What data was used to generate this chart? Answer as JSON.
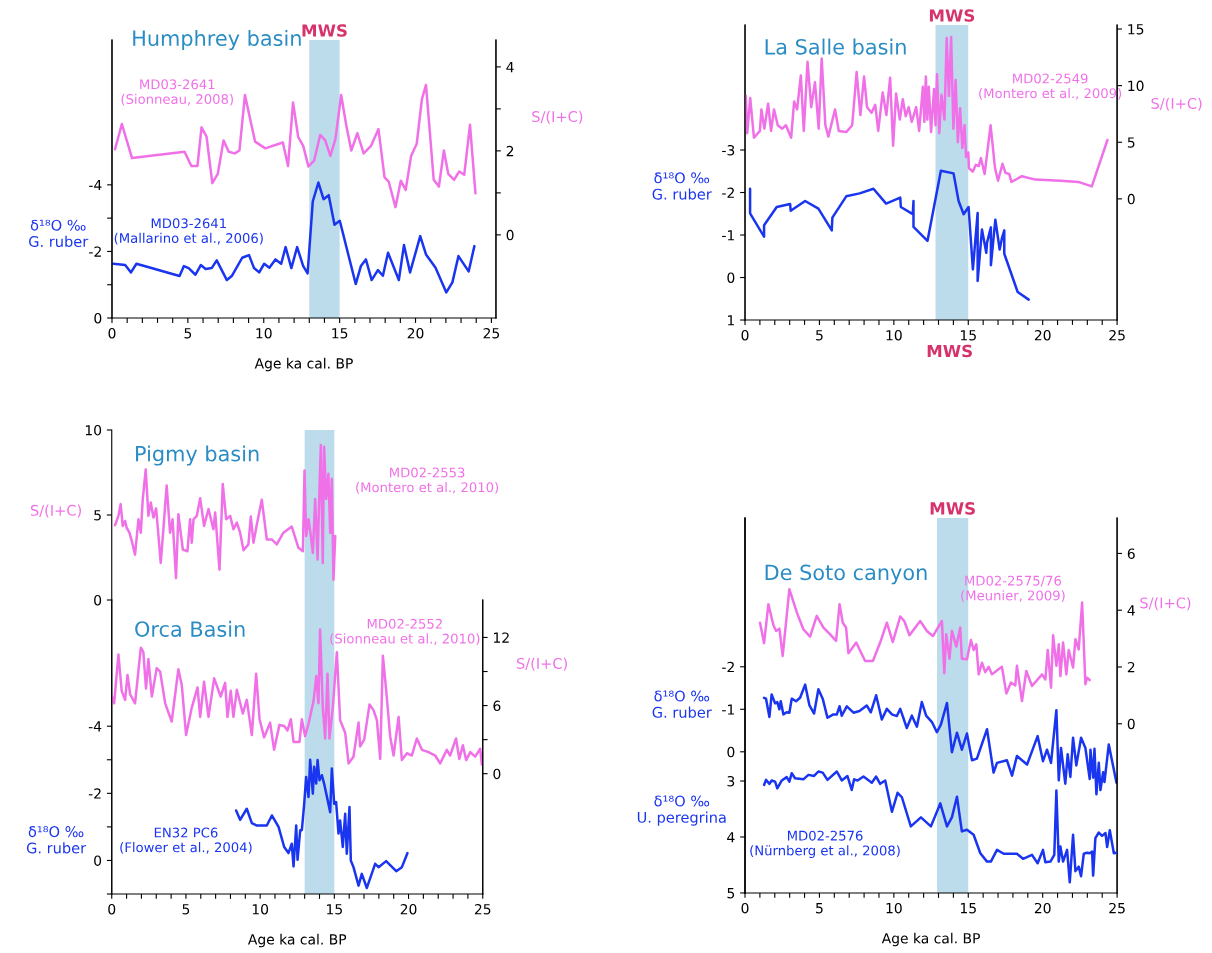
{
  "chart_data": [
    {
      "type": "line",
      "title": "Humphrey basin",
      "xlabel": "Age ka cal. BP",
      "ylabel": "δ¹⁸O ‰\nG. ruber",
      "y2label": "S/(I+C)",
      "xlim": [
        0,
        25.3
      ],
      "xticks": [
        0,
        {
          "value": 1,
          "label": null
        },
        {
          "value": 2,
          "label": null
        },
        {
          "value": 3,
          "label": null
        },
        {
          "value": 4,
          "label": null
        },
        5,
        {
          "value": 6,
          "label": null
        },
        {
          "value": 7,
          "label": null
        },
        {
          "value": 8,
          "label": null
        },
        {
          "value": 9,
          "label": null
        },
        10,
        {
          "value": 11,
          "label": null
        },
        {
          "value": 12,
          "label": null
        },
        {
          "value": 13,
          "label": null
        },
        {
          "value": 14,
          "label": null
        },
        15,
        {
          "value": 16,
          "label": null
        },
        {
          "value": 17,
          "label": null
        },
        {
          "value": 18,
          "label": null
        },
        {
          "value": 19,
          "label": null
        },
        20,
        {
          "value": 21,
          "label": null
        },
        {
          "value": 22,
          "label": null
        },
        {
          "value": 23,
          "label": null
        },
        {
          "value": 24,
          "label": null
        },
        25
      ],
      "ylim": [
        0,
        -8.35
      ],
      "yticks": [
        0,
        {
          "value": -1,
          "label": null
        },
        -2,
        {
          "value": -3,
          "label": null
        },
        -4
      ],
      "y2lim": [
        -1.98,
        4.64
      ],
      "y2ticks": [
        0,
        {
          "value": 1,
          "label": null
        },
        2,
        {
          "value": 3,
          "label": null
        },
        4
      ],
      "bands": [
        {
          "axis": "x",
          "from": 13,
          "to": 15,
          "label": "MWS",
          "color": "#bcdcec"
        }
      ],
      "series": [
        {
          "name": "MD03-2641\n(Sionneau, 2008)",
          "color": "#f070e8",
          "axis": "y2",
          "x": [
            0.2,
            0.65,
            1.32,
            4.78,
            5.23,
            5.63,
            5.9,
            6.23,
            6.61,
            6.97,
            7.35,
            7.69,
            8.09,
            8.4,
            8.76,
            9.43,
            10.1,
            11.26,
            11.6,
            11.93,
            12.27,
            12.6,
            12.94,
            13.32,
            13.72,
            14.05,
            14.39,
            14.72,
            15.1,
            15.46,
            15.77,
            16.17,
            16.58,
            17.07,
            17.56,
            17.96,
            18.23,
            18.68,
            19.03,
            19.35,
            19.71,
            20.08,
            20.42,
            20.69,
            21.2,
            21.54,
            21.87,
            22.16,
            22.54,
            22.88,
            23.21,
            23.59,
            23.95
          ],
          "values": [
            2.04,
            2.64,
            1.83,
            1.98,
            1.64,
            1.64,
            2.56,
            2.34,
            1.23,
            1.45,
            2.25,
            1.98,
            1.94,
            2.01,
            3.33,
            2.22,
            2.06,
            2.2,
            1.64,
            3.15,
            2.33,
            2.12,
            1.63,
            1.77,
            2.38,
            2.25,
            1.88,
            2.28,
            3.33,
            2.56,
            2.01,
            2.42,
            1.94,
            2.12,
            2.52,
            1.37,
            1.27,
            0.66,
            1.29,
            1.07,
            1.88,
            2.17,
            3.23,
            3.57,
            1.31,
            1.15,
            2.01,
            1.45,
            1.31,
            1.51,
            1.43,
            2.62,
            0.99
          ]
        },
        {
          "name": "MD03-2641\n(Mallarino et al., 2006)",
          "color": "#1a35f0",
          "axis": "y",
          "x": [
            0.09,
            0.87,
            1.25,
            1.61,
            4.45,
            4.74,
            5.05,
            5.5,
            5.85,
            6.17,
            6.57,
            6.9,
            7.57,
            7.91,
            8.58,
            9.03,
            9.36,
            9.7,
            10.03,
            10.37,
            10.77,
            11.15,
            11.44,
            11.82,
            12.2,
            12.6,
            12.89,
            13.23,
            13.6,
            13.94,
            14.28,
            14.66,
            15.01,
            16.06,
            16.4,
            16.73,
            17.11,
            17.52,
            17.85,
            18.19,
            18.9,
            19.24,
            19.64,
            20.31,
            20.69,
            21.32,
            22.03,
            22.43,
            22.83,
            23.5,
            23.88
          ],
          "values": [
            -1.63,
            -1.59,
            -1.37,
            -1.63,
            -1.26,
            -1.56,
            -1.5,
            -1.3,
            -1.59,
            -1.47,
            -1.5,
            -1.73,
            -1.14,
            -1.27,
            -1.81,
            -1.89,
            -1.5,
            -1.37,
            -1.63,
            -1.51,
            -1.76,
            -1.63,
            -2.13,
            -1.5,
            -2.13,
            -1.56,
            -1.34,
            -3.5,
            -4.07,
            -3.57,
            -3.69,
            -2.8,
            -2.92,
            -1.02,
            -1.56,
            -1.76,
            -1.14,
            -1.44,
            -1.27,
            -1.96,
            -1.14,
            -2.19,
            -1.37,
            -2.46,
            -1.91,
            -1.51,
            -0.77,
            -1.07,
            -1.86,
            -1.4,
            -2.16
          ]
        }
      ]
    },
    {
      "type": "line",
      "title": "La Salle basin",
      "ylabel": "δ¹⁸O ‰\nG. ruber",
      "y2label": "S/(I+C)",
      "annotations": [
        "MWS"
      ],
      "xlim": [
        0,
        25
      ],
      "xticks": [
        0,
        {
          "value": 1,
          "label": null
        },
        {
          "value": 2,
          "label": null
        },
        {
          "value": 3,
          "label": null
        },
        {
          "value": 4,
          "label": null
        },
        5,
        {
          "value": 6,
          "label": null
        },
        {
          "value": 7,
          "label": null
        },
        {
          "value": 8,
          "label": null
        },
        {
          "value": 9,
          "label": null
        },
        10,
        {
          "value": 11,
          "label": null
        },
        {
          "value": 12,
          "label": null
        },
        {
          "value": 13,
          "label": null
        },
        {
          "value": 14,
          "label": null
        },
        15,
        {
          "value": 16,
          "label": null
        },
        {
          "value": 17,
          "label": null
        },
        {
          "value": 18,
          "label": null
        },
        {
          "value": 19,
          "label": null
        },
        20,
        {
          "value": 21,
          "label": null
        },
        {
          "value": 22,
          "label": null
        },
        {
          "value": 23,
          "label": null
        },
        {
          "value": 24,
          "label": null
        },
        25
      ],
      "ylim": [
        1,
        -5.94
      ],
      "yticks": [
        1,
        0,
        -1,
        -2,
        -3
      ],
      "y2lim": [
        -10.7,
        15.35
      ],
      "y2ticks": [
        0,
        5,
        10,
        15
      ],
      "bands": [
        {
          "axis": "x",
          "from": 12.8,
          "to": 15,
          "label": "MWS",
          "color": "#bcdcec"
        }
      ],
      "series": [
        {
          "name": "MD02-2549\n(Montero et al., 2009)",
          "color": "#f070e8",
          "axis": "y2",
          "x": [
            0.05,
            0.15,
            0.35,
            0.6,
            1.0,
            1.1,
            1.3,
            1.55,
            1.75,
            1.95,
            2.2,
            2.5,
            2.75,
            3.1,
            3.3,
            3.5,
            3.75,
            3.95,
            4.2,
            4.45,
            4.7,
            4.95,
            5.15,
            5.4,
            5.6,
            6.05,
            6.3,
            6.8,
            7.2,
            7.5,
            7.75,
            8.0,
            8.2,
            8.5,
            8.75,
            8.95,
            9.25,
            9.5,
            9.75,
            9.95,
            10.15,
            10.4,
            10.6,
            10.8,
            11.0,
            11.2,
            11.5,
            11.7,
            11.95,
            12.05,
            12.15,
            12.25,
            12.35,
            12.5,
            12.7,
            12.8,
            12.9,
            13.05,
            13.2,
            13.4,
            13.55,
            13.7,
            13.85,
            14.0,
            14.15,
            14.3,
            14.45,
            14.6,
            14.75,
            14.85,
            15.0,
            15.05,
            15.3,
            15.5,
            15.7,
            15.85,
            16.1,
            16.5,
            16.8,
            17.0,
            17.3,
            17.5,
            17.75,
            17.9,
            18.6,
            19.5,
            21.2,
            22.4,
            23.3,
            24.35
          ],
          "values": [
            9.1,
            5.8,
            8.9,
            5.4,
            6.0,
            7.9,
            6.2,
            8.4,
            6.0,
            7.9,
            6.5,
            6.2,
            6.5,
            5.4,
            8.6,
            7.9,
            10.9,
            6.0,
            12.1,
            8.1,
            10.3,
            6.2,
            12.4,
            6.5,
            5.5,
            7.9,
            6.0,
            5.9,
            6.5,
            11.2,
            7.4,
            10.8,
            8.1,
            7.6,
            8.3,
            6.0,
            9.4,
            7.4,
            10.7,
            4.7,
            9.3,
            7.0,
            8.8,
            7.3,
            8.1,
            6.8,
            8.1,
            6.0,
            9.9,
            6.8,
            10.8,
            7.0,
            9.9,
            5.9,
            9.7,
            6.5,
            11.0,
            5.8,
            9.2,
            7.0,
            14.2,
            9.1,
            14.3,
            6.2,
            10.5,
            5.0,
            8.0,
            4.5,
            6.5,
            3.7,
            4.1,
            2.7,
            2.4,
            3.0,
            2.9,
            3.6,
            2.2,
            6.5,
            2.7,
            1.6,
            3.1,
            2.3,
            2.2,
            1.5,
            2.0,
            1.7,
            1.6,
            1.5,
            1.1,
            5.2
          ]
        },
        {
          "color": "#1a35f0",
          "axis": "y",
          "x": [
            0.34,
            0.34,
            1.28,
            1.28,
            2.13,
            3.03,
            3.07,
            4.04,
            4.93,
            5.83,
            5.87,
            6.8,
            7.7,
            8.63,
            9.48,
            10.43,
            10.47,
            11.27,
            11.32,
            11.32,
            12.26,
            13.16,
            14.01,
            14.35,
            14.69,
            15.02,
            15.31,
            15.63,
            15.63,
            15.92,
            16.21,
            16.26,
            16.52,
            16.52,
            16.82,
            17.11,
            17.26,
            17.42,
            17.42,
            18.32,
            19.06
          ],
          "values": [
            -2.09,
            -1.51,
            -0.96,
            -1.23,
            -1.66,
            -1.73,
            -1.57,
            -1.8,
            -1.62,
            -1.11,
            -1.41,
            -1.91,
            -1.98,
            -2.09,
            -1.74,
            -1.88,
            -1.66,
            -1.49,
            -1.8,
            -1.19,
            -0.86,
            -2.51,
            -2.45,
            -1.8,
            -1.49,
            -1.66,
            -0.19,
            -1.52,
            0.08,
            -1.13,
            -0.58,
            -0.82,
            -1.18,
            -0.29,
            -1.36,
            -0.66,
            -0.92,
            -1.11,
            -0.56,
            0.34,
            0.52
          ]
        }
      ]
    },
    {
      "type": "line",
      "title": "Pigmy basin",
      "ylabel": "S/(I+C)",
      "tick_labels": "y",
      "xlim": [
        0,
        25
      ],
      "ylim": [
        0,
        10
      ],
      "yticks": [
        0,
        5,
        10
      ],
      "bands": [
        {
          "axis": "x",
          "from": 13,
          "to": 15,
          "color": "#bcdcec"
        }
      ],
      "series": [
        {
          "name": "MD02-2553\n(Montero et al., 2010)",
          "color": "#f070e8",
          "axis": "y",
          "x": [
            0.22,
            0.45,
            0.6,
            0.74,
            0.9,
            1.0,
            1.19,
            1.35,
            1.57,
            1.8,
            1.96,
            2.09,
            2.29,
            2.47,
            2.63,
            2.81,
            2.99,
            3.15,
            3.3,
            3.48,
            3.7,
            3.93,
            4.1,
            4.33,
            4.49,
            4.79,
            5.1,
            5.28,
            5.39,
            5.51,
            5.73,
            5.96,
            6.22,
            6.52,
            6.85,
            6.97,
            7.26,
            7.48,
            7.71,
            7.98,
            8.2,
            8.43,
            8.65,
            8.88,
            9.21,
            9.37,
            9.55,
            9.78,
            10.11,
            10.45,
            10.79,
            11.12,
            11.57,
            12.13,
            12.58,
            12.88,
            12.99,
            13.1,
            13.26,
            13.42,
            13.55,
            13.71,
            13.87,
            14.0,
            14.09,
            14.22,
            14.31,
            14.45,
            14.6,
            14.72,
            14.83,
            14.94,
            15.06
          ],
          "values": [
            4.4,
            4.95,
            5.64,
            4.36,
            4.65,
            4.26,
            3.96,
            3.47,
            2.67,
            4.75,
            3.96,
            5.94,
            7.68,
            4.95,
            5.74,
            4.85,
            5.39,
            3.76,
            2.18,
            4.16,
            6.73,
            3.96,
            4.75,
            1.29,
            5.05,
            2.97,
            2.87,
            4.75,
            3.37,
            4.75,
            4.95,
            5.98,
            4.36,
            5.35,
            4.16,
            5.15,
            1.78,
            6.83,
            4.75,
            4.95,
            4.16,
            4.55,
            3.96,
            2.93,
            3.27,
            4.91,
            3.37,
            4.46,
            5.9,
            3.56,
            3.56,
            3.27,
            3.96,
            4.32,
            3.07,
            2.87,
            7.62,
            3.76,
            4.75,
            3.76,
            2.77,
            5.94,
            2.38,
            6.63,
            9.11,
            2.18,
            9.01,
            5.94,
            7.43,
            3.96,
            7.13,
            1.19,
            3.76
          ]
        }
      ]
    },
    {
      "type": "line",
      "title": "Orca Basin",
      "xlabel": "Age ka cal. BP",
      "ylabel": "δ¹⁸O ‰\nG. ruber",
      "y2label": "S/(I+C)",
      "xlim": [
        0,
        25
      ],
      "xticks": [
        0,
        {
          "value": 1,
          "label": null
        },
        {
          "value": 2,
          "label": null
        },
        {
          "value": 3,
          "label": null
        },
        {
          "value": 4,
          "label": null
        },
        5,
        {
          "value": 6,
          "label": null
        },
        {
          "value": 7,
          "label": null
        },
        {
          "value": 8,
          "label": null
        },
        {
          "value": 9,
          "label": null
        },
        10,
        {
          "value": 11,
          "label": null
        },
        {
          "value": 12,
          "label": null
        },
        {
          "value": 13,
          "label": null
        },
        {
          "value": 14,
          "label": null
        },
        15,
        {
          "value": 16,
          "label": null
        },
        {
          "value": 17,
          "label": null
        },
        {
          "value": 18,
          "label": null
        },
        {
          "value": 19,
          "label": null
        },
        20,
        {
          "value": 21,
          "label": null
        },
        {
          "value": 22,
          "label": null
        },
        {
          "value": 23,
          "label": null
        },
        {
          "value": 24,
          "label": null
        },
        25
      ],
      "ylim": [
        1,
        -7.76
      ],
      "yticks": [
        -4,
        {
          "value": -3,
          "label": null
        },
        -2,
        {
          "value": -1,
          "label": null
        },
        0,
        {
          "value": 1,
          "label": null
        }
      ],
      "y2lim": [
        -10.6,
        15.3
      ],
      "y2ticks": [
        0,
        {
          "value": 3,
          "label": null
        },
        6,
        {
          "value": 9,
          "label": null
        },
        12
      ],
      "bands": [
        {
          "axis": "x",
          "from": 13,
          "to": 15,
          "color": "#bcdcec"
        }
      ],
      "series": [
        {
          "name": "MD02-2552\n(Sionneau et al., 2010)",
          "color": "#f070e8",
          "axis": "y2",
          "x": [
            0.0,
            0.16,
            0.45,
            0.67,
            0.9,
            1.06,
            1.24,
            1.57,
            1.96,
            2.13,
            2.31,
            2.47,
            2.7,
            3.03,
            3.26,
            3.6,
            4.04,
            4.49,
            4.72,
            5.01,
            5.39,
            5.78,
            5.96,
            6.22,
            6.52,
            6.9,
            7.34,
            7.64,
            7.8,
            8.02,
            8.2,
            8.43,
            8.83,
            9.1,
            9.44,
            9.73,
            9.96,
            10.27,
            10.67,
            10.94,
            11.3,
            11.62,
            11.84,
            12.07,
            12.25,
            12.65,
            12.81,
            13.03,
            13.26,
            13.6,
            13.78,
            13.93,
            14.04,
            14.22,
            14.38,
            14.54,
            14.67,
            14.9,
            15.17,
            15.39,
            15.73,
            15.96,
            16.29,
            16.63,
            16.74,
            17.01,
            17.37,
            17.64,
            17.87,
            18.09,
            18.27,
            18.49,
            18.76,
            18.99,
            19.33,
            19.55,
            19.89,
            20.22,
            20.56,
            20.9,
            21.35,
            21.8,
            22.13,
            22.58,
            22.8,
            23.2,
            23.42,
            23.66,
            23.88,
            24.16,
            24.49,
            24.83,
            24.94
          ],
          "values": [
            6.8,
            6.2,
            10.5,
            7.3,
            6.5,
            8.7,
            7.0,
            6.2,
            11.1,
            10.7,
            7.5,
            10.1,
            6.8,
            9.3,
            9.0,
            6.2,
            4.6,
            9.2,
            7.8,
            3.4,
            5.8,
            7.6,
            5.0,
            8.1,
            5.0,
            8.4,
            6.8,
            8.0,
            5.0,
            7.3,
            5.0,
            7.4,
            5.3,
            6.5,
            3.4,
            8.8,
            4.8,
            3.2,
            4.5,
            2.1,
            4.3,
            4.2,
            3.8,
            4.8,
            2.8,
            2.8,
            4.8,
            3.3,
            4.4,
            6.4,
            8.6,
            6.2,
            12.7,
            5.9,
            3.1,
            8.8,
            3.1,
            5.9,
            10.7,
            4.7,
            3.6,
            0.9,
            1.5,
            4.5,
            2.4,
            3.0,
            6.1,
            5.6,
            4.7,
            1.3,
            10.4,
            7.4,
            3.3,
            1.6,
            5.0,
            1.2,
            1.8,
            1.6,
            3.1,
            2.1,
            1.9,
            1.6,
            0.9,
            2.1,
            1.6,
            3.1,
            1.3,
            2.5,
            1.2,
            1.9,
            1.5,
            2.2,
            0.8
          ]
        },
        {
          "name": "EN32 PC6\n(Flower et al., 2004)",
          "color": "#1a35f0",
          "axis": "y",
          "x": [
            8.38,
            8.65,
            9.1,
            9.44,
            9.78,
            10.45,
            10.79,
            11.24,
            11.62,
            11.91,
            12.13,
            12.25,
            12.43,
            12.52,
            12.7,
            12.81,
            12.97,
            13.1,
            13.26,
            13.37,
            13.55,
            13.64,
            13.78,
            13.87,
            14.0,
            14.16,
            14.31,
            14.72,
            14.83,
            14.99,
            15.12,
            15.28,
            15.39,
            15.57,
            15.73,
            15.84,
            16.02,
            16.11,
            16.29,
            16.63,
            16.85,
            17.19,
            17.75,
            17.98,
            18.49,
            19.17,
            19.55,
            19.93
          ],
          "values": [
            -1.49,
            -1.21,
            -1.54,
            -1.11,
            -1.04,
            -1.04,
            -1.34,
            -1.0,
            -0.4,
            -0.22,
            -0.5,
            0.18,
            -1.04,
            -0.02,
            -0.9,
            -0.9,
            -1.69,
            -2.49,
            -1.89,
            -3.0,
            -1.99,
            -2.79,
            -2.29,
            -2.99,
            -2.39,
            -2.54,
            -2.29,
            -1.44,
            -2.74,
            -1.69,
            -1.74,
            -0.8,
            -1.19,
            -0.4,
            -1.39,
            -0.2,
            -1.59,
            0.0,
            0.2,
            0.75,
            0.4,
            0.82,
            0.1,
            0.2,
            0.02,
            0.32,
            0.2,
            -0.22
          ]
        }
      ]
    },
    {
      "type": "line",
      "title": "De Soto canyon",
      "xlabel": "Age ka cal. BP",
      "ylabel": "δ¹⁸O ‰\nG. ruber",
      "y2label": "S/(I+C)",
      "y3label": "δ¹⁸O ‰\nU. peregrina",
      "xlim": [
        0,
        25
      ],
      "xticks": [
        0,
        {
          "value": 1,
          "label": null
        },
        {
          "value": 2,
          "label": null
        },
        {
          "value": 3,
          "label": null
        },
        {
          "value": 4,
          "label": null
        },
        5,
        {
          "value": 6,
          "label": null
        },
        {
          "value": 7,
          "label": null
        },
        {
          "value": 8,
          "label": null
        },
        {
          "value": 9,
          "label": null
        },
        10,
        {
          "value": 11,
          "label": null
        },
        {
          "value": 12,
          "label": null
        },
        {
          "value": 13,
          "label": null
        },
        {
          "value": 14,
          "label": null
        },
        15,
        {
          "value": 16,
          "label": null
        },
        {
          "value": 17,
          "label": null
        },
        {
          "value": 18,
          "label": null
        },
        {
          "value": 19,
          "label": null
        },
        20,
        {
          "value": 21,
          "label": null
        },
        {
          "value": 22,
          "label": null
        },
        {
          "value": 23,
          "label": null
        },
        {
          "value": 24,
          "label": null
        },
        25
      ],
      "ylim": [
        3.32,
        -5.5
      ],
      "yticks": [
        -2,
        -1,
        0
      ],
      "y2lim": [
        -5.96,
        7.25
      ],
      "y2ticks": [
        0,
        2,
        4,
        6
      ],
      "y3lim": [
        5,
        -1.7
      ],
      "y3ticks": [
        3,
        4,
        5
      ],
      "bands": [
        {
          "axis": "x",
          "from": 12.9,
          "to": 15,
          "label": "MWS",
          "color": "#bcdcec"
        }
      ],
      "series": [
        {
          "name": "MD02-2575/76\n(Meunier, 2009)",
          "color": "#f070e8",
          "axis": "y2",
          "x": [
            1.01,
            1.28,
            1.57,
            1.91,
            2.09,
            2.31,
            2.53,
            2.98,
            3.48,
            3.92,
            4.37,
            4.82,
            5.27,
            5.72,
            6.12,
            6.35,
            6.57,
            6.79,
            6.95,
            7.47,
            8.07,
            8.59,
            9.08,
            9.53,
            9.93,
            10.43,
            10.7,
            11.05,
            11.77,
            12.22,
            12.62,
            13.23,
            13.39,
            13.52,
            13.74,
            13.9,
            14.2,
            14.46,
            14.57,
            14.91,
            15.18,
            15.36,
            15.54,
            15.7,
            15.92,
            16.14,
            16.37,
            16.59,
            16.88,
            17.26,
            17.56,
            17.87,
            18.16,
            18.27,
            18.61,
            18.9,
            19.28,
            19.96,
            20.18,
            20.34,
            20.56,
            20.7,
            20.92,
            21.08,
            21.19,
            21.37,
            21.59,
            21.75,
            22.04,
            22.2,
            22.42,
            22.65,
            22.87,
            22.98,
            23.16
          ],
          "values": [
            3.56,
            2.84,
            4.21,
            3.47,
            3.27,
            3.35,
            2.39,
            4.74,
            3.92,
            3.33,
            3.07,
            3.8,
            3.39,
            3.15,
            2.92,
            4.21,
            3.56,
            3.39,
            2.48,
            2.86,
            2.21,
            2.21,
            2.86,
            3.56,
            2.88,
            3.78,
            3.62,
            3.12,
            3.62,
            3.27,
            3.09,
            3.62,
            1.78,
            3.15,
            2.29,
            3.27,
            2.72,
            3.39,
            2.29,
            2.27,
            2.95,
            2.6,
            2.8,
            1.74,
            2.15,
            1.82,
            2.01,
            1.74,
            1.86,
            2.01,
            1.07,
            1.45,
            1.35,
            2.04,
            0.8,
            1.86,
            1.33,
            1.74,
            1.56,
            2.6,
            1.27,
            3.12,
            2.04,
            2.8,
            1.68,
            2.86,
            1.74,
            2.6,
            1.98,
            2.98,
            2.62,
            4.27,
            1.39,
            1.62,
            1.54
          ]
        },
        {
          "color": "#1a35f0",
          "axis": "y",
          "x": [
            1.28,
            1.41,
            1.64,
            1.79,
            2.02,
            2.17,
            2.31,
            2.4,
            2.58,
            2.8,
            2.98,
            3.14,
            3.43,
            3.7,
            4.04,
            4.33,
            4.64,
            4.93,
            5.22,
            5.54,
            5.94,
            6.17,
            6.35,
            6.5,
            6.84,
            7.29,
            7.69,
            8.18,
            8.45,
            8.81,
            9.19,
            9.53,
            9.87,
            10.2,
            10.43,
            10.87,
            11.21,
            11.55,
            11.88,
            12.17,
            12.56,
            12.89,
            13.16,
            13.57,
            13.9,
            14.24,
            14.57,
            14.91,
            15.25,
            15.58,
            16.26,
            16.7,
            16.93,
            17.6,
            17.94,
            18.27,
            18.95,
            19.66,
            20.02,
            20.29,
            20.56,
            20.92,
            21.08,
            21.23,
            21.52,
            21.68,
            21.86,
            22.04,
            22.26,
            22.58,
            22.87,
            23.16,
            23.21,
            23.39,
            23.48,
            23.61,
            23.77,
            23.88,
            24.06,
            24.15,
            24.44,
            24.96
          ],
          "values": [
            -1.27,
            -1.25,
            -0.82,
            -1.35,
            -1.14,
            -1.17,
            -1.0,
            -1.19,
            -0.88,
            -0.93,
            -0.92,
            -1.25,
            -1.19,
            -1.27,
            -1.58,
            -1.09,
            -0.9,
            -1.47,
            -1.25,
            -0.8,
            -0.88,
            -0.88,
            -1.07,
            -0.85,
            -1.07,
            -0.92,
            -0.96,
            -1.09,
            -0.93,
            -1.33,
            -0.76,
            -1.01,
            -0.88,
            -0.84,
            -1.01,
            -0.56,
            -0.85,
            -0.59,
            -1.17,
            -0.85,
            -0.7,
            -0.46,
            -0.64,
            -1.15,
            0.01,
            -0.45,
            -0.05,
            -0.43,
            0.2,
            0.16,
            -0.53,
            0.49,
            0.26,
            0.2,
            0.56,
            0.1,
            0.3,
            -0.37,
            0.22,
            -0.05,
            0.26,
            -0.98,
            0.67,
            -0.09,
            0.75,
            0.06,
            0.59,
            -0.33,
            0.32,
            -0.33,
            -0.09,
            0.64,
            -0.05,
            0.61,
            -0.07,
            1.0,
            0.26,
            0.9,
            0.48,
            0.71,
            -0.17,
            0.73
          ]
        },
        {
          "name": "MD02-2576\n(Nürnberg et al., 2008)",
          "color": "#1a35f0",
          "axis": "y3",
          "x": [
            1.28,
            1.41,
            1.64,
            1.79,
            2.02,
            2.17,
            2.47,
            2.8,
            2.98,
            3.14,
            3.36,
            3.92,
            4.26,
            4.64,
            4.93,
            5.22,
            5.54,
            6.17,
            6.5,
            6.88,
            7.17,
            7.33,
            7.56,
            7.96,
            8.52,
            8.81,
            9.08,
            9.42,
            9.87,
            10.25,
            10.54,
            11.14,
            11.82,
            12.49,
            13.12,
            13.57,
            13.9,
            14.24,
            14.57,
            14.91,
            15.36,
            15.81,
            16.26,
            16.52,
            16.93,
            17.38,
            18.27,
            18.68,
            19.28,
            19.66,
            20.02,
            20.18,
            20.52,
            20.78,
            20.92,
            21.08,
            21.19,
            21.37,
            21.64,
            21.82,
            22.04,
            22.2,
            22.42,
            22.58,
            22.76,
            22.98,
            23.16,
            23.32,
            23.39,
            23.54,
            23.77,
            23.99,
            24.22,
            24.33,
            24.51,
            24.78,
            24.96
          ],
          "values": [
            3.07,
            2.98,
            3.05,
            2.99,
            3.01,
            3.13,
            2.99,
            2.93,
            3.01,
            2.86,
            2.95,
            2.97,
            2.89,
            2.91,
            2.83,
            2.85,
            2.98,
            2.83,
            2.99,
            2.91,
            3.16,
            2.97,
            2.99,
            2.92,
            3.03,
            2.92,
            3.05,
            2.99,
            3.55,
            3.21,
            3.29,
            3.81,
            3.65,
            3.81,
            3.4,
            3.81,
            3.65,
            3.28,
            3.9,
            3.87,
            3.96,
            4.29,
            4.44,
            4.44,
            4.23,
            4.3,
            4.3,
            4.39,
            4.32,
            4.47,
            4.23,
            4.45,
            4.44,
            4.32,
            3.17,
            4.44,
            4.17,
            4.44,
            4.23,
            4.81,
            3.96,
            4.61,
            4.53,
            4.7,
            4.3,
            4.28,
            4.29,
            4.26,
            4.69,
            4.02,
            3.92,
            3.98,
            3.93,
            4.18,
            3.88,
            4.29,
            4.28
          ]
        }
      ]
    }
  ]
}
